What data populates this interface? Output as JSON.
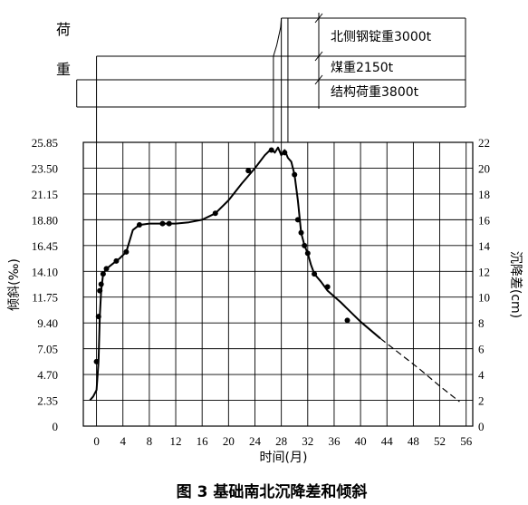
{
  "load_panel": {
    "label_top": "荷",
    "label_bottom": "重",
    "loads": [
      {
        "name": "北侧钢锭重3000t",
        "start_month": 28,
        "end_month": 29
      },
      {
        "name": "煤重2150t",
        "start_month": 0,
        "end_month": 29
      },
      {
        "name": "结构荷重3800t",
        "start_month": -3,
        "end_month": 29
      }
    ]
  },
  "chart_data": {
    "type": "line",
    "caption": "图 3   基础南北沉降差和倾斜",
    "xlabel": "时间(月)",
    "ylabel_left": "倾斜(‰)",
    "ylabel_right": "沉降差(cm)",
    "x_ticks": [
      0,
      4,
      8,
      12,
      16,
      20,
      24,
      28,
      32,
      36,
      40,
      44,
      48,
      52,
      56
    ],
    "y_left_ticks": [
      "0",
      "2.35",
      "4.70",
      "7.05",
      "9.40",
      "11.75",
      "14.10",
      "16.45",
      "18.80",
      "21.15",
      "23.50",
      "25.85"
    ],
    "y_right_ticks": [
      0,
      2,
      4,
      6,
      8,
      10,
      12,
      14,
      16,
      18,
      20,
      22
    ],
    "xlim": [
      -2,
      57
    ],
    "ylim_right": [
      0,
      22
    ],
    "grid": true,
    "series": [
      {
        "style": "solid",
        "x": [
          -1,
          -0.5,
          0,
          0.3,
          0.5,
          0.7,
          1,
          1.5,
          2.5,
          3.5,
          4.5,
          5.5,
          6.5,
          8,
          10,
          12,
          14,
          16,
          18,
          20,
          22,
          24,
          25.5,
          26.5,
          27,
          27.5,
          28,
          28.5,
          29,
          29.5,
          30,
          30.5,
          31,
          31.5,
          32,
          32.5,
          33,
          34,
          35,
          37,
          40,
          43
        ],
        "y": [
          2.0,
          2.3,
          2.8,
          5.0,
          8.5,
          10.5,
          11.8,
          12.2,
          12.6,
          13.0,
          13.5,
          15.2,
          15.6,
          15.7,
          15.7,
          15.7,
          15.8,
          16.0,
          16.5,
          17.5,
          18.8,
          20.0,
          21.0,
          21.5,
          21.2,
          21.6,
          21.0,
          21.4,
          20.8,
          20.5,
          19.5,
          17.5,
          15.0,
          14.0,
          13.4,
          12.5,
          11.8,
          11.2,
          10.5,
          9.6,
          8.1,
          6.8
        ]
      },
      {
        "style": "dashed",
        "x": [
          43,
          46,
          49,
          52,
          55
        ],
        "y": [
          6.8,
          5.6,
          4.4,
          3.1,
          1.9
        ]
      }
    ],
    "markers": {
      "x": [
        0,
        0.3,
        0.5,
        0.7,
        1,
        1.5,
        3,
        4.5,
        6.5,
        10,
        11,
        18,
        23,
        26.5,
        28.5,
        30,
        30.5,
        31,
        31.5,
        32,
        33,
        35,
        38
      ],
      "y": [
        5.0,
        8.5,
        10.5,
        11.0,
        11.8,
        12.2,
        12.8,
        13.5,
        15.6,
        15.7,
        15.7,
        16.5,
        19.8,
        21.4,
        21.2,
        19.5,
        16.0,
        15.0,
        14.0,
        13.4,
        11.8,
        10.8,
        8.2
      ]
    }
  }
}
